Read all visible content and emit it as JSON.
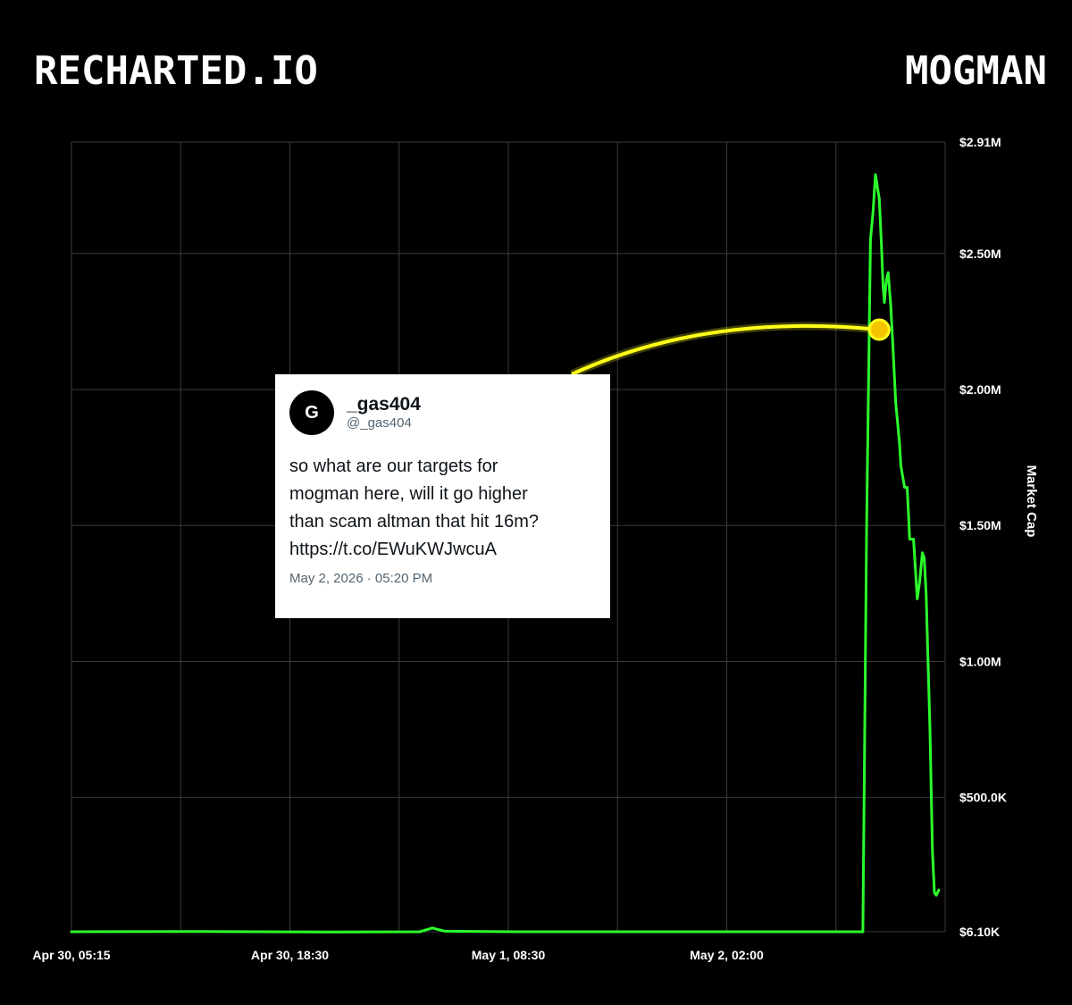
{
  "header": {
    "brand": "RECHARTED.IO",
    "token": "MOGMAN"
  },
  "colors": {
    "background": "#000000",
    "grid": "#3a3a3a",
    "series": "#2bff2b",
    "highlight": "#ffff1a",
    "marker": "#f5c400"
  },
  "chart_data": {
    "type": "line",
    "title": "",
    "xlabel": "",
    "ylabel": "Market Cap",
    "y_ticks": [
      {
        "value": 6100,
        "label": "$6.10K"
      },
      {
        "value": 500000,
        "label": "$500.0K"
      },
      {
        "value": 1000000,
        "label": "$1.00M"
      },
      {
        "value": 1500000,
        "label": "$1.50M"
      },
      {
        "value": 2000000,
        "label": "$2.00M"
      },
      {
        "value": 2500000,
        "label": "$2.50M"
      },
      {
        "value": 2910000,
        "label": "$2.91M"
      }
    ],
    "x_ticks": [
      "Apr 30, 05:15",
      "Apr 30, 18:30",
      "May 1, 08:30",
      "May 2, 02:00"
    ],
    "ylim": [
      6100,
      2910000
    ],
    "x_range_hours": [
      0,
      69
    ],
    "grid": true,
    "legend": "none",
    "series": [
      {
        "x_hours": [
          0,
          10,
          20,
          27.5,
          28.5,
          29.5,
          35,
          45,
          55,
          60,
          62.2,
          62.5,
          62.8,
          63.1,
          63.3,
          63.5,
          63.8,
          64.0,
          64.1,
          64.2,
          64.35,
          64.5,
          64.7,
          64.85,
          65.1,
          65.4,
          65.5,
          65.8,
          66.0,
          66.2,
          66.5,
          66.8,
          67.0,
          67.2,
          67.35,
          67.5,
          67.8,
          68.0,
          68.15,
          68.3,
          68.5
        ],
        "values": [
          6100,
          7000,
          5000,
          6000,
          20000,
          8000,
          6200,
          6100,
          6100,
          6100,
          6100,
          6100,
          1500000,
          2550000,
          2650000,
          2790000,
          2700000,
          2500000,
          2380000,
          2320000,
          2400000,
          2430000,
          2310000,
          2180000,
          1950000,
          1800000,
          1720000,
          1640000,
          1640000,
          1450000,
          1450000,
          1230000,
          1300000,
          1400000,
          1380000,
          1250000,
          750000,
          300000,
          150000,
          140000,
          160000
        ]
      }
    ],
    "annotation": {
      "x_hours": 63.8,
      "value": 2220000
    }
  },
  "tweet": {
    "avatar_letter": "G",
    "display_name": "_gas404",
    "handle": "@_gas404",
    "text": "so what are our targets for\nmogman here, will it go higher\nthan scam altman that hit 16m?\nhttps://t.co/EWuKWJwcuA",
    "date": "May 2, 2026 · 05:20 PM"
  }
}
